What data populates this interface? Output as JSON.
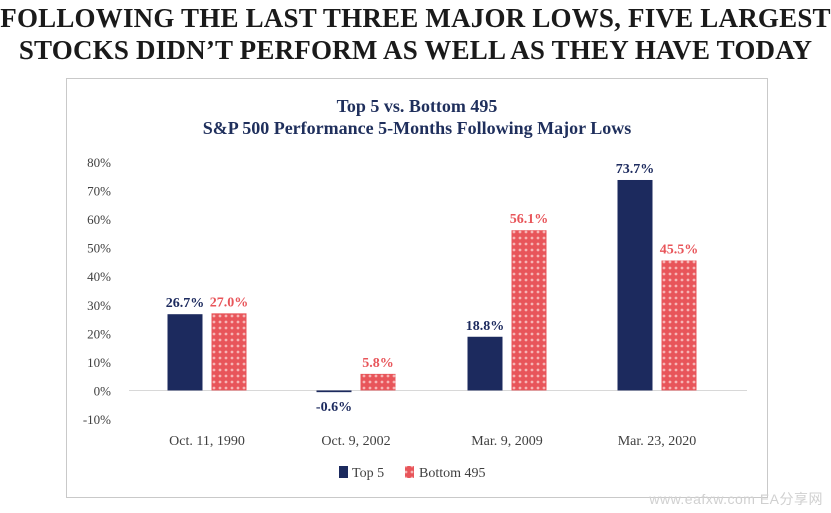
{
  "headline": {
    "line1": "FOLLOWING THE LAST THREE MAJOR LOWS, FIVE LARGEST",
    "line2": "STOCKS DIDN’T PERFORM AS WELL AS THEY HAVE TODAY"
  },
  "watermark": "www.eafxw.com  EA分享网",
  "colors": {
    "top5": "#1c2a5e",
    "bottom495": "#e8555a",
    "bottom495_pattern": "#f6b5b5",
    "title": "#1f2f5c"
  },
  "chart_data": {
    "type": "bar",
    "title": "Top 5 vs. Bottom 495",
    "subtitle": "S&P 500 Performance 5-Months Following Major Lows",
    "xlabel": "",
    "ylabel": "",
    "ylim": [
      -10,
      80
    ],
    "yticks": [
      "80%",
      "70%",
      "60%",
      "50%",
      "40%",
      "30%",
      "20%",
      "10%",
      "0%",
      "-10%"
    ],
    "ytick_values": [
      80,
      70,
      60,
      50,
      40,
      30,
      20,
      10,
      0,
      -10
    ],
    "categories": [
      "Oct. 11, 1990",
      "Oct. 9, 2002",
      "Mar. 9, 2009",
      "Mar. 23, 2020"
    ],
    "series": [
      {
        "name": "Top 5",
        "values": [
          26.7,
          -0.6,
          18.8,
          73.7
        ],
        "labels": [
          "26.7%",
          "-0.6%",
          "18.8%",
          "73.7%"
        ]
      },
      {
        "name": "Bottom 495",
        "values": [
          27.0,
          5.8,
          56.1,
          45.5
        ],
        "labels": [
          "27.0%",
          "5.8%",
          "56.1%",
          "45.5%"
        ]
      }
    ],
    "grid": false,
    "legend": "bottom"
  }
}
